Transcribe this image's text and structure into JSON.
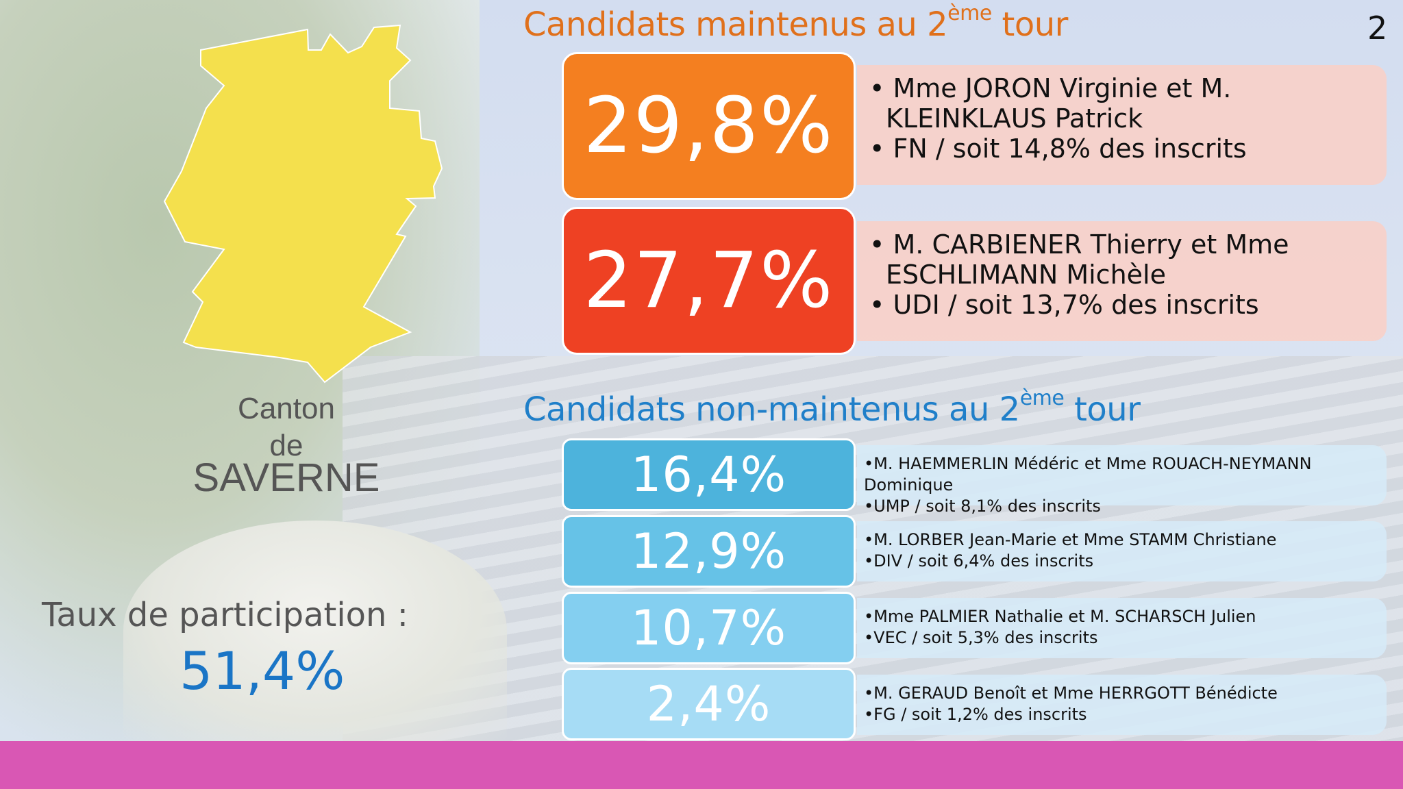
{
  "page_number": "2",
  "colors": {
    "map": "#f4e04d",
    "first": "#f47f20",
    "second": "#ee4123",
    "footer": "#d957b4",
    "title_maintained": "#e0701b",
    "title_non_maintained": "#1f7fc9"
  },
  "left": {
    "canton_line1": "Canton",
    "canton_line2": "de",
    "canton_line3": "SAVERNE",
    "participation_label": "Taux de participation :",
    "participation_value": "51,4%"
  },
  "maintained": {
    "title_pre": "Candidats maintenus au 2",
    "title_sup": "ème",
    "title_post": " tour",
    "candidates": [
      {
        "score": "29,8%",
        "names_line1": "Mme JORON Virginie et M.",
        "names_line2": "KLEINKLAUS Patrick",
        "party": "FN / soit 14,8% des inscrits",
        "color": "#f47f20"
      },
      {
        "score": "27,7%",
        "names_line1": "M. CARBIENER Thierry et Mme",
        "names_line2": "ESCHLIMANN Michèle",
        "party": "UDI / soit 13,7% des inscrits",
        "color": "#ee4123"
      }
    ]
  },
  "non_maintained": {
    "title_pre": "Candidats non-maintenus au 2",
    "title_sup": "ème",
    "title_post": " tour",
    "candidates": [
      {
        "score": "16,4%",
        "names": "M. HAEMMERLIN Médéric et Mme ROUACH-NEYMANN Dominique",
        "party": "UMP / soit 8,1% des inscrits",
        "color": "#4db3dc"
      },
      {
        "score": "12,9%",
        "names": "M. LORBER Jean-Marie et Mme STAMM Christiane",
        "party": "DIV / soit 6,4% des inscrits",
        "color": "#66c2e7"
      },
      {
        "score": "10,7%",
        "names": "Mme PALMIER Nathalie et M. SCHARSCH Julien",
        "party": "VEC / soit 5,3% des inscrits",
        "color": "#84cff0"
      },
      {
        "score": "2,4%",
        "names": "M. GERAUD Benoît et Mme HERRGOTT Bénédicte",
        "party": "FG / soit 1,2% des inscrits",
        "color": "#a6dcf5"
      }
    ]
  }
}
